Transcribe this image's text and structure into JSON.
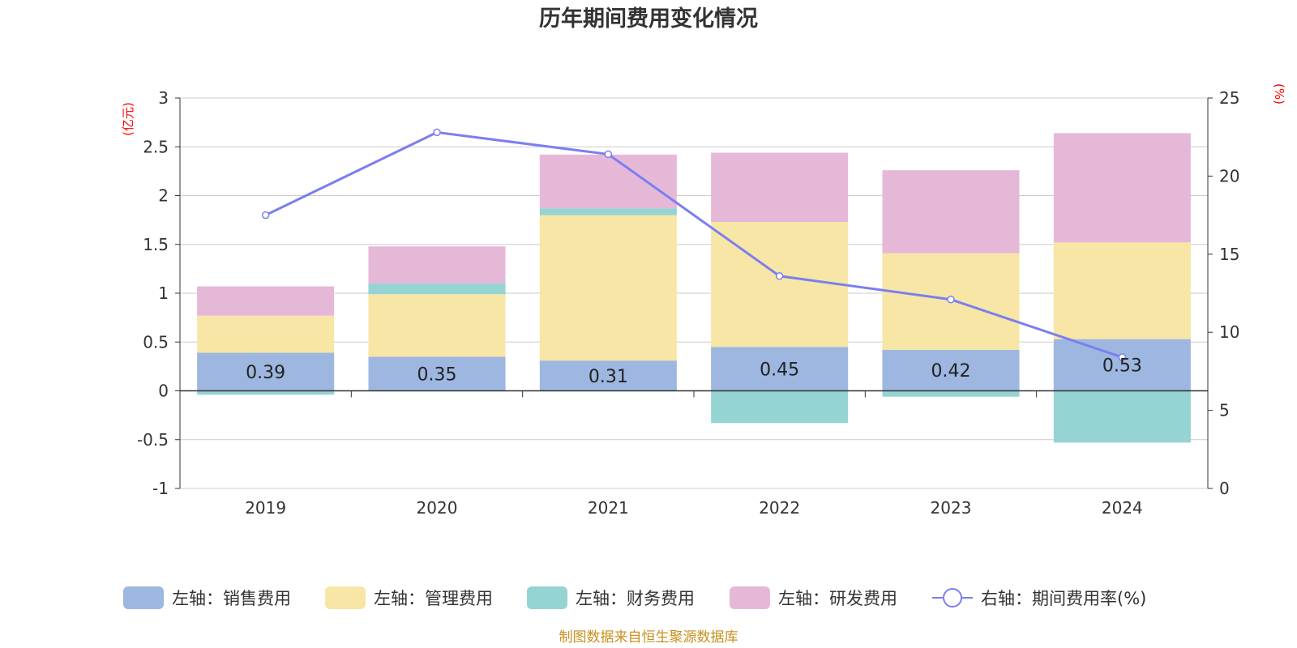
{
  "chart_data": {
    "type": "bar",
    "stacked": true,
    "title": "历年期间费用变化情况",
    "categories": [
      "2019",
      "2020",
      "2021",
      "2022",
      "2023",
      "2024"
    ],
    "left_axis": {
      "unit": "(亿元)",
      "ylim": [
        -1,
        3
      ],
      "ticks": [
        "-1",
        "-0.5",
        "0",
        "0.5",
        "1",
        "1.5",
        "2",
        "2.5",
        "3"
      ]
    },
    "right_axis": {
      "unit": "(%)",
      "ylim": [
        0,
        25
      ],
      "ticks": [
        "0",
        "5",
        "10",
        "15",
        "20",
        "25"
      ]
    },
    "series": [
      {
        "name": "左轴：销售费用",
        "axis": "left",
        "color": "#9db7e0",
        "values": [
          0.39,
          0.35,
          0.31,
          0.45,
          0.42,
          0.53
        ],
        "labels": [
          "0.39",
          "0.35",
          "0.31",
          "0.45",
          "0.42",
          "0.53"
        ]
      },
      {
        "name": "左轴：管理费用",
        "axis": "left",
        "color": "#f7e6a6",
        "values": [
          0.38,
          0.64,
          1.49,
          1.28,
          0.99,
          0.99
        ]
      },
      {
        "name": "左轴：财务费用",
        "axis": "left",
        "color": "#96d3d3",
        "values": [
          -0.04,
          0.11,
          0.07,
          -0.33,
          -0.06,
          -0.53
        ]
      },
      {
        "name": "左轴：研发费用",
        "axis": "left",
        "color": "#e6b8d8",
        "values": [
          0.3,
          0.38,
          0.55,
          0.71,
          0.85,
          1.12
        ]
      },
      {
        "name": "右轴：期间费用率(%)",
        "axis": "right",
        "type": "line",
        "color": "#7b7fef",
        "values": [
          17.5,
          22.8,
          21.4,
          13.6,
          12.1,
          8.4
        ]
      }
    ],
    "source": "制图数据来自恒生聚源数据库"
  }
}
